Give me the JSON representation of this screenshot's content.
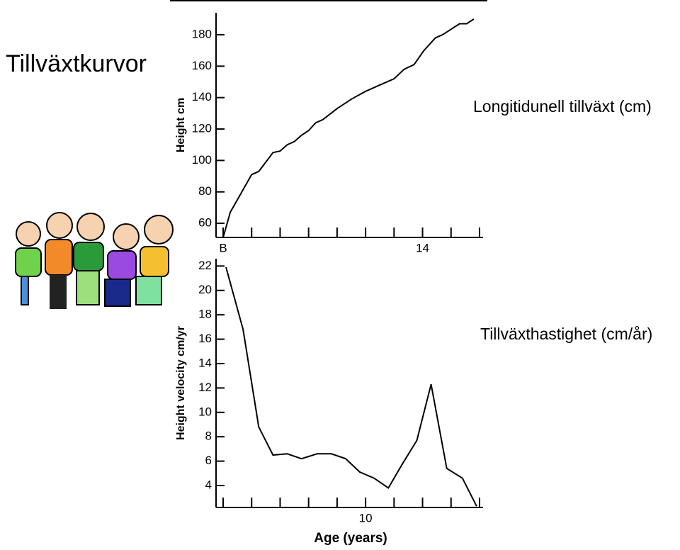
{
  "slide": {
    "title": "Tillväxtkurvor",
    "labels": [
      "Longitidunell tillväxt  (cm)",
      "Tillväxthastighet (cm/år)"
    ]
  },
  "chart_data": [
    {
      "type": "line",
      "ylabel": "Height cm",
      "color": "#000000",
      "x": [
        0,
        0.5,
        2,
        2.5,
        3.5,
        4,
        4.5,
        5,
        5.5,
        6,
        6.5,
        7,
        8,
        9,
        10,
        11,
        12,
        12.7,
        13.4,
        14.1,
        14.9,
        15.4,
        16.6,
        17.1,
        17.6
      ],
      "values": [
        51,
        67,
        91,
        93,
        105,
        106,
        110,
        112,
        116,
        119,
        124,
        126,
        133,
        139,
        144,
        148,
        152,
        158,
        161,
        170,
        178,
        180,
        187,
        187,
        190
      ],
      "xlim": [
        -0.25,
        18.25
      ],
      "xticks": [
        {
          "value": 0,
          "label": "B"
        },
        14
      ],
      "xminor_ticks": [
        2,
        4,
        6,
        8,
        10,
        12,
        16,
        18
      ],
      "ylim": [
        51,
        194
      ],
      "yticks": [
        60,
        80,
        100,
        120,
        140,
        160,
        180
      ]
    },
    {
      "type": "line",
      "ylabel": "Height velocity cm/yr",
      "xlabel": "Age (years)",
      "color": "#000000",
      "x": [
        0.2,
        1.4,
        2.5,
        3.5,
        4.5,
        5.5,
        6.6,
        7.6,
        8.6,
        9.6,
        10.6,
        11.6,
        12.6,
        13.6,
        14.6,
        15.7,
        16.8,
        17.8
      ],
      "values": [
        21.9,
        16.8,
        8.8,
        6.5,
        6.6,
        6.2,
        6.6,
        6.6,
        6.2,
        5.1,
        4.6,
        3.8,
        5.8,
        7.7,
        12.3,
        5.4,
        4.6,
        2.3
      ],
      "xlim": [
        -0.25,
        18.25
      ],
      "xticks": [
        10
      ],
      "xminor_ticks": [
        0,
        2,
        4,
        6,
        8,
        12,
        14,
        16,
        18
      ],
      "ylim": [
        2.2,
        22.6
      ],
      "yticks": [
        4,
        6,
        8,
        10,
        12,
        14,
        16,
        18,
        20,
        22
      ]
    }
  ]
}
